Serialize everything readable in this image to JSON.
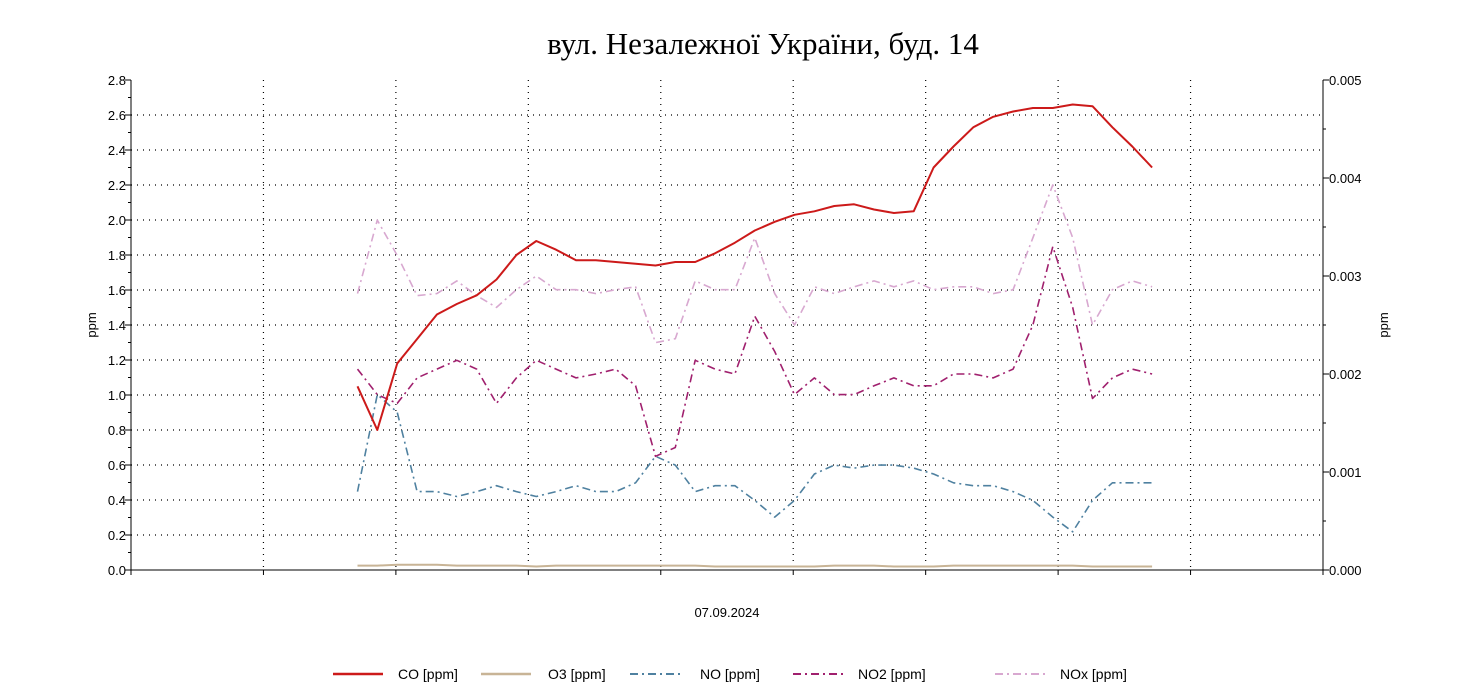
{
  "chart_data": {
    "type": "line",
    "title": "вул. Незалежної України, буд. 14",
    "xlabel": "07.09.2024",
    "ylabel_left": "ppm",
    "ylabel_right": "ppm",
    "xlim": [
      0,
      9
    ],
    "x_tick_count": 10,
    "ylim_left": [
      0,
      2.8
    ],
    "ylim_right": [
      0,
      0.005
    ],
    "y_ticks_left": [
      "0.0",
      "0.2",
      "0.4",
      "0.6",
      "0.8",
      "1.0",
      "1.2",
      "1.4",
      "1.6",
      "1.8",
      "2.0",
      "2.2",
      "2.4",
      "2.6",
      "2.8"
    ],
    "y_ticks_right": [
      "0.000",
      "0.001",
      "0.002",
      "0.003",
      "0.004",
      "0.005"
    ],
    "grid": true,
    "legend_position": "bottom",
    "x_start": 1.71,
    "x_step": 0.15,
    "series": [
      {
        "name": "CO [ppm]",
        "axis": "left",
        "color": "#cc1a1a",
        "dash": "",
        "width": 2,
        "values": [
          1.05,
          0.8,
          1.18,
          1.32,
          1.46,
          1.52,
          1.57,
          1.66,
          1.8,
          1.88,
          1.83,
          1.77,
          1.77,
          1.76,
          1.75,
          1.74,
          1.76,
          1.76,
          1.81,
          1.87,
          1.94,
          1.99,
          2.03,
          2.05,
          2.08,
          2.09,
          2.06,
          2.04,
          2.05,
          2.3,
          2.42,
          2.53,
          2.59,
          2.62,
          2.64,
          2.64,
          2.66,
          2.65,
          2.53,
          2.42,
          2.3
        ]
      },
      {
        "name": "O3 [ppm]",
        "axis": "left",
        "color": "#c8b496",
        "dash": "",
        "width": 2,
        "values": [
          0.025,
          0.025,
          0.03,
          0.03,
          0.03,
          0.025,
          0.025,
          0.025,
          0.025,
          0.02,
          0.025,
          0.025,
          0.025,
          0.025,
          0.025,
          0.025,
          0.025,
          0.025,
          0.02,
          0.02,
          0.02,
          0.02,
          0.02,
          0.02,
          0.025,
          0.025,
          0.025,
          0.02,
          0.02,
          0.02,
          0.025,
          0.025,
          0.025,
          0.025,
          0.025,
          0.025,
          0.025,
          0.02,
          0.02,
          0.02,
          0.02
        ]
      },
      {
        "name": "NO [ppm]",
        "axis": "right",
        "color": "#4f81a0",
        "dash": "8 4 2 4",
        "width": 1.6,
        "values": [
          0.0008,
          0.00179,
          0.00161,
          0.0008,
          0.0008,
          0.00075,
          0.0008,
          0.00086,
          0.0008,
          0.00075,
          0.0008,
          0.00086,
          0.0008,
          0.0008,
          0.00089,
          0.00116,
          0.00107,
          0.0008,
          0.00086,
          0.00086,
          0.00071,
          0.00054,
          0.00071,
          0.00098,
          0.00107,
          0.00104,
          0.00107,
          0.00107,
          0.00104,
          0.00098,
          0.00089,
          0.00086,
          0.00086,
          0.0008,
          0.00071,
          0.00054,
          0.00039,
          0.00071,
          0.00089,
          0.00089,
          0.00089
        ]
      },
      {
        "name": "NO2 [ppm]",
        "axis": "right",
        "color": "#a0206e",
        "dash": "8 4 2 4",
        "width": 1.6,
        "values": [
          0.00205,
          0.00179,
          0.0017,
          0.00196,
          0.00205,
          0.00214,
          0.00205,
          0.0017,
          0.00196,
          0.00214,
          0.00205,
          0.00196,
          0.002,
          0.00205,
          0.00188,
          0.00116,
          0.00125,
          0.00214,
          0.00205,
          0.002,
          0.00259,
          0.00223,
          0.00179,
          0.00196,
          0.00179,
          0.00179,
          0.00188,
          0.00196,
          0.00188,
          0.00188,
          0.002,
          0.002,
          0.00196,
          0.00205,
          0.0025,
          0.0033,
          0.00268,
          0.00175,
          0.00196,
          0.00205,
          0.002
        ]
      },
      {
        "name": "NOx [ppm]",
        "axis": "right",
        "color": "#d8a8d0",
        "dash": "8 4 2 4",
        "width": 1.6,
        "values": [
          0.00282,
          0.00357,
          0.00321,
          0.0028,
          0.00282,
          0.00295,
          0.0028,
          0.00268,
          0.00286,
          0.003,
          0.00286,
          0.00286,
          0.00282,
          0.00286,
          0.00289,
          0.00232,
          0.00236,
          0.00295,
          0.00286,
          0.00286,
          0.00339,
          0.00282,
          0.0025,
          0.00289,
          0.00282,
          0.00289,
          0.00295,
          0.00289,
          0.00295,
          0.00286,
          0.00289,
          0.00289,
          0.00282,
          0.00286,
          0.00339,
          0.00393,
          0.00339,
          0.0025,
          0.00286,
          0.00295,
          0.00289
        ]
      }
    ]
  }
}
